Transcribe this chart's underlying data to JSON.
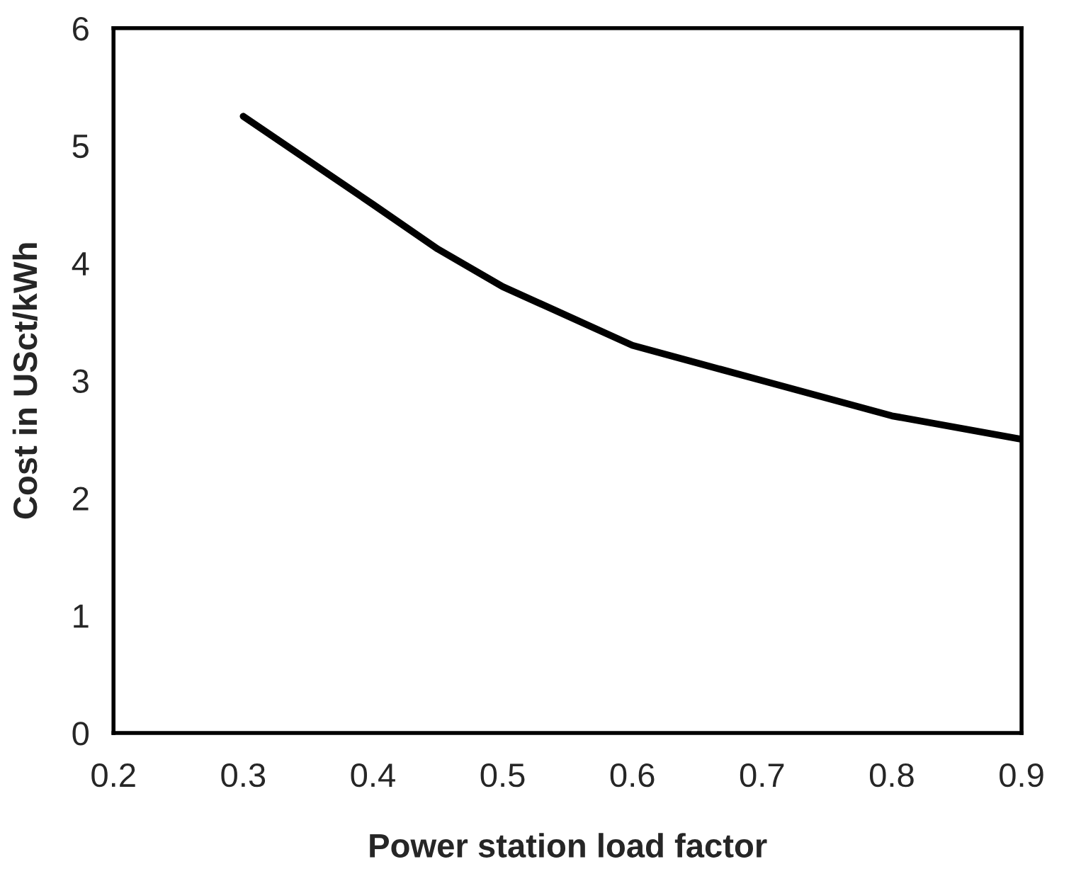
{
  "chart_data": {
    "type": "line",
    "xlabel": "Power station load factor",
    "ylabel": "Cost in USct/kWh",
    "x": [
      0.3,
      0.4,
      0.45,
      0.5,
      0.6,
      0.7,
      0.8,
      0.9
    ],
    "series": [
      {
        "color": "#000000",
        "values": [
          5.25,
          4.5,
          4.12,
          3.8,
          3.3,
          3.0,
          2.7,
          2.5
        ]
      }
    ],
    "xlim": [
      0.2,
      0.9
    ],
    "xticks": [
      0.2,
      0.3,
      0.4,
      0.5,
      0.6,
      0.7,
      0.8,
      0.9
    ],
    "ylim": [
      0,
      6
    ],
    "yticks": [
      0,
      1,
      2,
      3,
      4,
      5,
      6
    ],
    "grid": false,
    "legend": false,
    "marker": "none",
    "line_style": "solid"
  }
}
